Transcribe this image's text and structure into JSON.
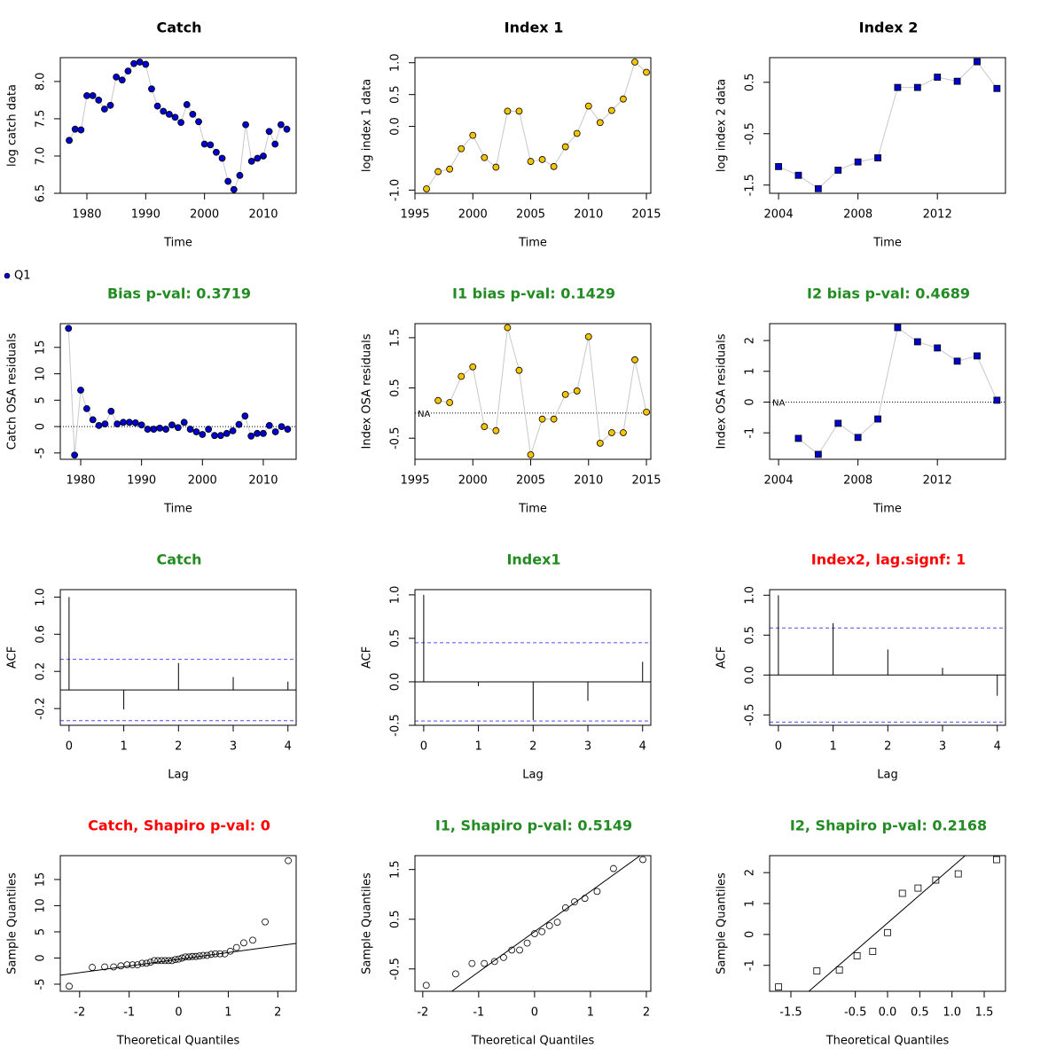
{
  "chart_data": [
    {
      "type": "line",
      "title": "Catch",
      "xlabel": "Time",
      "ylabel": "log catch data",
      "series_name": null,
      "marker": "circle",
      "color": "#0000cd",
      "x": [
        1977,
        1978,
        1979,
        1980,
        1981,
        1982,
        1983,
        1984,
        1985,
        1986,
        1987,
        1988,
        1989,
        1990,
        1991,
        1992,
        1993,
        1994,
        1995,
        1996,
        1997,
        1998,
        1999,
        2000,
        2001,
        2002,
        2003,
        2004,
        2005,
        2006,
        2007,
        2008,
        2009,
        2010,
        2011,
        2012,
        2013,
        2014
      ],
      "values": [
        7.21,
        7.36,
        7.35,
        7.81,
        7.81,
        7.75,
        7.63,
        7.68,
        8.06,
        8.02,
        8.14,
        8.24,
        8.26,
        8.23,
        7.9,
        7.67,
        7.6,
        7.56,
        7.52,
        7.45,
        7.69,
        7.56,
        7.46,
        7.16,
        7.15,
        7.05,
        6.97,
        6.66,
        6.55,
        6.74,
        7.42,
        6.93,
        6.97,
        7.0,
        7.33,
        7.16,
        7.42,
        7.36
      ],
      "xlim": [
        1975.48,
        2015.58
      ],
      "ylim": [
        6.5,
        8.32
      ],
      "xticks": [
        1980,
        1990,
        2000,
        2010
      ],
      "yticks": [
        {
          "value": 8,
          "label": "8.0"
        },
        7.5,
        {
          "value": 7,
          "label": "7.0"
        },
        6.5
      ]
    },
    {
      "type": "line",
      "title": "Index 1",
      "xlabel": "Time",
      "ylabel": "log index 1 data",
      "marker": "circle",
      "color": "#f5c400",
      "x": [
        1996,
        1997,
        1998,
        1999,
        2000,
        2001,
        2002,
        2003,
        2004,
        2005,
        2006,
        2007,
        2008,
        2009,
        2010,
        2011,
        2012,
        2013,
        2014,
        2015
      ],
      "values": [
        -0.98,
        -0.71,
        -0.67,
        -0.35,
        -0.14,
        -0.49,
        -0.64,
        0.24,
        0.24,
        -0.55,
        -0.52,
        -0.63,
        -0.32,
        -0.11,
        0.32,
        0.06,
        0.25,
        0.43,
        1.01,
        0.85
      ],
      "xlim": [
        1995.0,
        2015.38
      ],
      "ylim": [
        -1.05,
        1.08
      ],
      "xticks": [
        1995,
        2000,
        2005,
        2010,
        2015
      ],
      "yticks": [
        {
          "value": 1,
          "label": "1.0"
        },
        0.5,
        {
          "value": 0,
          "label": "0.0"
        },
        {
          "value": -1,
          "label": "-1.0"
        }
      ]
    },
    {
      "type": "line",
      "title": "Index 2",
      "xlabel": "Time",
      "ylabel": "log index 2 data",
      "marker": "square",
      "color": "#0000cd",
      "x": [
        2004,
        2005,
        2006,
        2007,
        2008,
        2009,
        2010,
        2011,
        2012,
        2013,
        2014,
        2015
      ],
      "values": [
        -1.14,
        -1.31,
        -1.57,
        -1.21,
        -1.05,
        -0.97,
        0.4,
        0.4,
        0.6,
        0.52,
        0.9,
        0.38
      ],
      "xlim": [
        2003.55,
        2015.43
      ],
      "ylim": [
        -1.66,
        0.98
      ],
      "xticks": [
        2004,
        2008,
        2012
      ],
      "yticks": [
        0.5,
        -0.5,
        -1.5
      ]
    },
    {
      "type": "line",
      "title": "Bias p-val: 0.3719",
      "title_color": "#228b22",
      "xlabel": "Time",
      "ylabel": "Catch OSA residuals",
      "series_name": "Q1",
      "marker": "circle",
      "color": "#0000cd",
      "hline": 0,
      "x": [
        1978,
        1979,
        1980,
        1981,
        1982,
        1983,
        1984,
        1985,
        1986,
        1987,
        1988,
        1989,
        1990,
        1991,
        1992,
        1993,
        1994,
        1995,
        1996,
        1997,
        1998,
        1999,
        2000,
        2001,
        2002,
        2003,
        2004,
        2005,
        2006,
        2007,
        2008,
        2009,
        2010,
        2011,
        2012,
        2013,
        2014
      ],
      "values": [
        18.6,
        -5.4,
        6.9,
        3.4,
        1.3,
        0.2,
        0.5,
        2.9,
        0.5,
        0.8,
        0.8,
        0.7,
        0.3,
        -0.5,
        -0.5,
        -0.3,
        -0.5,
        0.3,
        -0.2,
        0.8,
        -0.5,
        -1.0,
        -1.5,
        -0.5,
        -1.7,
        -1.7,
        -1.3,
        -0.8,
        0.4,
        2.0,
        -1.8,
        -1.3,
        -1.3,
        0.2,
        -1.0,
        0.0,
        -0.5
      ],
      "xlim": [
        1976.65,
        2015.4
      ],
      "ylim": [
        -6.2,
        19.5
      ],
      "xticks": [
        1980,
        1990,
        2000,
        2010
      ],
      "yticks": [
        15,
        10,
        5,
        0,
        -5
      ]
    },
    {
      "type": "line",
      "title": "I1 bias p-val: 0.1429",
      "title_color": "#228b22",
      "xlabel": "Time",
      "ylabel": "Index OSA residuals",
      "marker": "circle",
      "color": "#f5c400",
      "hline": 0,
      "annotation": "NA",
      "x": [
        1996,
        1997,
        1998,
        1999,
        2000,
        2001,
        2002,
        2003,
        2004,
        2005,
        2006,
        2007,
        2008,
        2009,
        2010,
        2011,
        2012,
        2013,
        2014,
        2015
      ],
      "values": [
        null,
        0.25,
        0.21,
        0.73,
        0.92,
        -0.27,
        -0.35,
        1.7,
        0.85,
        -0.83,
        -0.12,
        -0.12,
        0.37,
        0.44,
        1.52,
        -0.6,
        -0.39,
        -0.39,
        1.06,
        0.02
      ],
      "xlim": [
        1995.0,
        2015.38
      ],
      "ylim": [
        -0.92,
        1.78
      ],
      "xticks": [
        1995,
        2000,
        2005,
        2010,
        2015
      ],
      "yticks": [
        1.5,
        0.5,
        -0.5
      ]
    },
    {
      "type": "line",
      "title": "I2 bias p-val: 0.4689",
      "title_color": "#228b22",
      "xlabel": "Time",
      "ylabel": "Index OSA residuals",
      "marker": "square",
      "color": "#0000cd",
      "hline": 0,
      "annotation": "NA",
      "x": [
        2004,
        2005,
        2006,
        2007,
        2008,
        2009,
        2010,
        2011,
        2012,
        2013,
        2014,
        2015
      ],
      "values": [
        null,
        -1.18,
        -1.7,
        -0.69,
        -1.15,
        -0.55,
        2.42,
        1.96,
        1.76,
        1.33,
        1.5,
        0.06
      ],
      "xlim": [
        2003.55,
        2015.43
      ],
      "ylim": [
        -1.86,
        2.55
      ],
      "xticks": [
        2004,
        2008,
        2012
      ],
      "yticks": [
        2,
        1,
        0,
        -1
      ]
    },
    {
      "type": "acf",
      "title": "Catch",
      "title_color": "#228b22",
      "xlabel": "Lag",
      "ylabel": "ACF",
      "x": [
        0,
        1,
        2,
        3,
        4
      ],
      "values": [
        1.0,
        -0.21,
        0.29,
        0.14,
        0.09
      ],
      "ci": [
        0.33,
        -0.33
      ],
      "xlim": [
        -0.16,
        4.15
      ],
      "ylim": [
        -0.38,
        1.08
      ],
      "xticks": [
        0,
        1,
        2,
        3,
        4
      ],
      "yticks": [
        {
          "value": 1,
          "label": "1.0"
        },
        0.6,
        0.2,
        -0.2
      ]
    },
    {
      "type": "acf",
      "title": "Index1",
      "title_color": "#228b22",
      "xlabel": "Lag",
      "ylabel": "ACF",
      "x": [
        0,
        1,
        2,
        3,
        4
      ],
      "values": [
        1.0,
        -0.05,
        -0.44,
        -0.22,
        0.23
      ],
      "ci": [
        0.45,
        -0.45
      ],
      "xlim": [
        -0.16,
        4.15
      ],
      "ylim": [
        -0.5,
        1.06
      ],
      "xticks": [
        0,
        1,
        2,
        3,
        4
      ],
      "yticks": [
        {
          "value": 1,
          "label": "1.0"
        },
        0.5,
        {
          "value": 0,
          "label": "0.0"
        },
        -0.5
      ]
    },
    {
      "type": "acf",
      "title": "Index2, lag.signf: 1",
      "title_color": "#ff0000",
      "xlabel": "Lag",
      "ylabel": "ACF",
      "x": [
        0,
        1,
        2,
        3,
        4
      ],
      "values": [
        1.0,
        0.65,
        0.32,
        0.09,
        -0.26
      ],
      "ci": [
        0.59,
        -0.59
      ],
      "xlim": [
        -0.16,
        4.15
      ],
      "ylim": [
        -0.63,
        1.07
      ],
      "xticks": [
        0,
        1,
        2,
        3,
        4
      ],
      "yticks": [
        {
          "value": 1,
          "label": "1.0"
        },
        0.5,
        {
          "value": 0,
          "label": "0.0"
        },
        -0.5
      ]
    },
    {
      "type": "scatter",
      "title": "Catch, Shapiro p-val: 0",
      "title_color": "#ff0000",
      "xlabel": "Theoretical Quantiles",
      "ylabel": "Sample Quantiles",
      "marker": "circle",
      "x": [
        -2.21,
        -1.745,
        -1.494,
        -1.313,
        -1.167,
        -1.042,
        -0.932,
        -0.832,
        -0.74,
        -0.653,
        -0.572,
        -0.493,
        -0.418,
        -0.345,
        -0.274,
        -0.204,
        -0.136,
        -0.068,
        0,
        0.068,
        0.136,
        0.204,
        0.274,
        0.345,
        0.418,
        0.493,
        0.572,
        0.653,
        0.74,
        0.832,
        0.932,
        1.042,
        1.167,
        1.313,
        1.494,
        1.745,
        2.21
      ],
      "values": [
        -5.4,
        -1.8,
        -1.7,
        -1.7,
        -1.5,
        -1.3,
        -1.3,
        -1.3,
        -1.0,
        -1.0,
        -0.8,
        -0.5,
        -0.5,
        -0.5,
        -0.5,
        -0.5,
        -0.5,
        -0.3,
        -0.2,
        0.0,
        0.2,
        0.2,
        0.3,
        0.3,
        0.4,
        0.5,
        0.5,
        0.7,
        0.8,
        0.8,
        0.8,
        1.3,
        2.0,
        2.9,
        3.4,
        6.9,
        18.6
      ],
      "qqline": {
        "intercept": -0.24,
        "slope": 1.28
      },
      "xlim": [
        -2.39,
        2.37
      ],
      "ylim": [
        -6.36,
        19.56
      ],
      "xticks": [
        -2,
        -1,
        0,
        1,
        2
      ],
      "yticks": [
        15,
        10,
        5,
        0,
        -5
      ]
    },
    {
      "type": "scatter",
      "title": "I1, Shapiro p-val: 0.5149",
      "title_color": "#228b22",
      "xlabel": "Theoretical Quantiles",
      "ylabel": "Sample Quantiles",
      "marker": "circle",
      "x": [
        -1.938,
        -1.412,
        -1.119,
        -0.9,
        -0.716,
        -0.555,
        -0.407,
        -0.267,
        -0.132,
        0,
        0.132,
        0.267,
        0.407,
        0.555,
        0.716,
        0.9,
        1.119,
        1.412,
        1.938
      ],
      "values": [
        -0.83,
        -0.6,
        -0.39,
        -0.39,
        -0.35,
        -0.27,
        -0.12,
        -0.12,
        0.02,
        0.21,
        0.25,
        0.37,
        0.44,
        0.73,
        0.85,
        0.92,
        1.06,
        1.52,
        1.7
      ],
      "qqline": {
        "intercept": 0.25,
        "slope": 0.81
      },
      "xlim": [
        -2.14,
        2.08
      ],
      "ylim": [
        -0.95,
        1.78
      ],
      "xticks": [
        -2,
        -1,
        0,
        1,
        2
      ],
      "yticks": [
        1.5,
        0.5,
        -0.5
      ]
    },
    {
      "type": "scatter",
      "title": "I2, Shapiro p-val: 0.2168",
      "title_color": "#228b22",
      "xlabel": "Theoretical Quantiles",
      "ylabel": "Sample Quantiles",
      "marker": "square",
      "x": [
        -1.691,
        -1.097,
        -0.748,
        -0.473,
        -0.23,
        0,
        0.23,
        0.473,
        0.748,
        1.097,
        1.691
      ],
      "values": [
        -1.7,
        -1.18,
        -1.15,
        -0.69,
        -0.55,
        0.06,
        1.33,
        1.5,
        1.76,
        1.96,
        2.42
      ],
      "qqline": {
        "intercept": 0.37,
        "slope": 1.81
      },
      "xlim": [
        -1.83,
        1.83
      ],
      "ylim": [
        -1.84,
        2.55
      ],
      "xticks": [
        -1.5,
        -0.5,
        {
          "value": 0,
          "label": "0.0"
        },
        0.5,
        {
          "value": 1,
          "label": "1.0"
        },
        1.5
      ],
      "yticks": [
        2,
        1,
        0,
        -1
      ]
    }
  ]
}
